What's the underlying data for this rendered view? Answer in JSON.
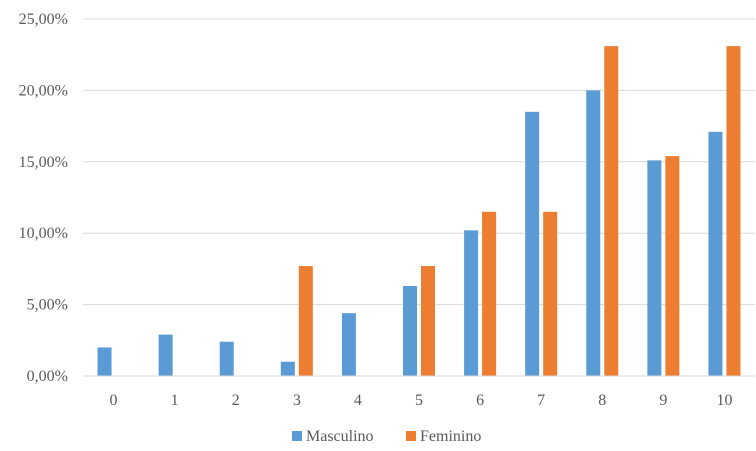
{
  "chart_data": {
    "type": "bar",
    "categories": [
      "0",
      "1",
      "2",
      "3",
      "4",
      "5",
      "6",
      "7",
      "8",
      "9",
      "10"
    ],
    "series": [
      {
        "name": "Masculino",
        "color": "#5B9BD5",
        "values": [
          2.0,
          2.9,
          2.4,
          1.0,
          4.4,
          6.3,
          10.2,
          18.5,
          20.0,
          15.1,
          17.1
        ]
      },
      {
        "name": "Feminino",
        "color": "#ED7D31",
        "values": [
          0,
          0,
          0,
          7.7,
          0,
          7.7,
          11.5,
          11.5,
          23.1,
          15.4,
          23.1
        ]
      }
    ],
    "title": "",
    "xlabel": "",
    "ylabel": "",
    "ylim": [
      0,
      25
    ],
    "yticks": [
      0,
      5,
      10,
      15,
      20,
      25
    ],
    "ytick_labels": [
      "0,00%",
      "5,00%",
      "10,00%",
      "15,00%",
      "20,00%",
      "25,00%"
    ],
    "grid": true,
    "gridline_color": "#D9D9D9",
    "legend_position": "bottom"
  }
}
